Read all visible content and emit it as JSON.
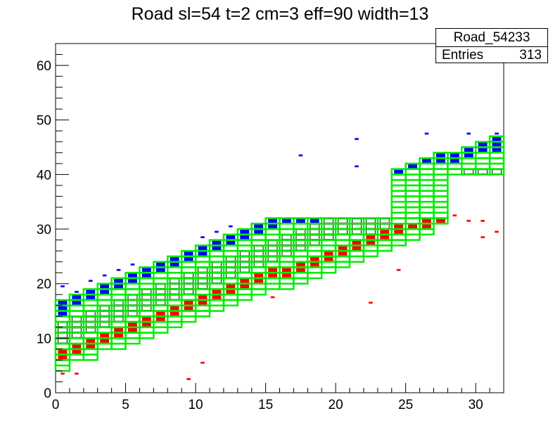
{
  "title": "Road sl=54 t=2 cm=3 eff=90 width=13",
  "stats": {
    "name": "Road_54233",
    "entries_label": "Entries",
    "entries_value": "313"
  },
  "colors": {
    "blue": "#0000ff",
    "red": "#ff0000",
    "green": "#00ee00",
    "black": "#000000"
  },
  "chart_data": {
    "type": "heatmap",
    "xlim": [
      0,
      32
    ],
    "ylim": [
      0,
      64
    ],
    "xticks": [
      "0",
      "5",
      "10",
      "15",
      "20",
      "25",
      "30"
    ],
    "yticks": [
      "0",
      "10",
      "20",
      "30",
      "40",
      "50",
      "60"
    ],
    "grid": false,
    "road_lower": [
      [
        0,
        4
      ],
      [
        1,
        6
      ],
      [
        2,
        6
      ],
      [
        3,
        8
      ],
      [
        4,
        8
      ],
      [
        5,
        9
      ],
      [
        6,
        10
      ],
      [
        7,
        11
      ],
      [
        8,
        12
      ],
      [
        9,
        13
      ],
      [
        10,
        14
      ],
      [
        11,
        15
      ],
      [
        12,
        16
      ],
      [
        13,
        17
      ],
      [
        14,
        18
      ],
      [
        15,
        19
      ],
      [
        16,
        19
      ],
      [
        17,
        20
      ],
      [
        18,
        21
      ],
      [
        19,
        22
      ],
      [
        20,
        23
      ],
      [
        21,
        24
      ],
      [
        22,
        25
      ],
      [
        23,
        26
      ],
      [
        24,
        27
      ],
      [
        25,
        28
      ],
      [
        26,
        29
      ],
      [
        27,
        31
      ],
      [
        28,
        40
      ],
      [
        29,
        40
      ],
      [
        30,
        40
      ],
      [
        31,
        40
      ]
    ],
    "road_upper": [
      [
        0,
        17
      ],
      [
        1,
        18
      ],
      [
        2,
        19
      ],
      [
        3,
        20
      ],
      [
        4,
        21
      ],
      [
        5,
        22
      ],
      [
        6,
        23
      ],
      [
        7,
        24
      ],
      [
        8,
        25
      ],
      [
        9,
        26
      ],
      [
        10,
        27
      ],
      [
        11,
        28
      ],
      [
        12,
        29
      ],
      [
        13,
        30
      ],
      [
        14,
        31
      ],
      [
        15,
        32
      ],
      [
        16,
        32
      ],
      [
        17,
        32
      ],
      [
        18,
        32
      ],
      [
        19,
        32
      ],
      [
        20,
        32
      ],
      [
        21,
        32
      ],
      [
        22,
        32
      ],
      [
        23,
        32
      ],
      [
        24,
        41
      ],
      [
        25,
        42
      ],
      [
        26,
        43
      ],
      [
        27,
        44
      ],
      [
        28,
        44
      ],
      [
        29,
        45
      ],
      [
        30,
        46
      ],
      [
        31,
        47
      ]
    ],
    "cells": {
      "blue": [
        [
          0,
          14
        ],
        [
          0,
          15
        ],
        [
          0,
          16
        ],
        [
          1,
          16
        ],
        [
          1,
          17
        ],
        [
          2,
          17
        ],
        [
          2,
          18
        ],
        [
          3,
          18
        ],
        [
          3,
          19
        ],
        [
          4,
          19
        ],
        [
          4,
          20
        ],
        [
          5,
          20
        ],
        [
          5,
          21
        ],
        [
          6,
          21
        ],
        [
          6,
          22
        ],
        [
          7,
          22
        ],
        [
          7,
          23
        ],
        [
          8,
          23
        ],
        [
          8,
          24
        ],
        [
          9,
          24
        ],
        [
          9,
          25
        ],
        [
          10,
          25
        ],
        [
          10,
          26
        ],
        [
          11,
          26
        ],
        [
          11,
          27
        ],
        [
          12,
          27
        ],
        [
          12,
          28
        ],
        [
          13,
          28
        ],
        [
          13,
          29
        ],
        [
          14,
          29
        ],
        [
          14,
          30
        ],
        [
          15,
          30
        ],
        [
          15,
          31
        ],
        [
          16,
          31
        ],
        [
          17,
          31
        ],
        [
          18,
          31
        ],
        [
          24,
          40
        ],
        [
          25,
          41
        ],
        [
          26,
          42
        ],
        [
          27,
          42
        ],
        [
          27,
          43
        ],
        [
          28,
          42
        ],
        [
          28,
          43
        ],
        [
          29,
          43
        ],
        [
          29,
          44
        ],
        [
          30,
          44
        ],
        [
          30,
          45
        ],
        [
          31,
          44
        ],
        [
          31,
          45
        ],
        [
          31,
          46
        ]
      ],
      "red": [
        [
          0,
          6
        ],
        [
          0,
          7
        ],
        [
          1,
          7
        ],
        [
          1,
          8
        ],
        [
          2,
          8
        ],
        [
          2,
          9
        ],
        [
          3,
          9
        ],
        [
          3,
          10
        ],
        [
          4,
          10
        ],
        [
          4,
          11
        ],
        [
          5,
          11
        ],
        [
          5,
          12
        ],
        [
          6,
          12
        ],
        [
          6,
          13
        ],
        [
          7,
          13
        ],
        [
          7,
          14
        ],
        [
          8,
          14
        ],
        [
          8,
          15
        ],
        [
          9,
          15
        ],
        [
          9,
          16
        ],
        [
          10,
          16
        ],
        [
          10,
          17
        ],
        [
          11,
          17
        ],
        [
          11,
          18
        ],
        [
          12,
          18
        ],
        [
          12,
          19
        ],
        [
          13,
          19
        ],
        [
          13,
          20
        ],
        [
          14,
          20
        ],
        [
          14,
          21
        ],
        [
          15,
          21
        ],
        [
          15,
          22
        ],
        [
          16,
          21
        ],
        [
          16,
          22
        ],
        [
          17,
          22
        ],
        [
          17,
          23
        ],
        [
          18,
          23
        ],
        [
          18,
          24
        ],
        [
          19,
          24
        ],
        [
          19,
          25
        ],
        [
          20,
          25
        ],
        [
          20,
          26
        ],
        [
          21,
          26
        ],
        [
          21,
          27
        ],
        [
          22,
          27
        ],
        [
          22,
          28
        ],
        [
          23,
          28
        ],
        [
          23,
          29
        ],
        [
          24,
          29
        ],
        [
          24,
          30
        ],
        [
          25,
          30
        ],
        [
          26,
          30
        ],
        [
          26,
          31
        ],
        [
          27,
          31
        ]
      ],
      "black": [
        [
          0,
          9
        ],
        [
          0,
          10
        ],
        [
          0,
          11
        ],
        [
          0,
          12
        ],
        [
          1,
          10
        ],
        [
          1,
          11
        ],
        [
          1,
          12
        ],
        [
          1,
          13
        ],
        [
          2,
          11
        ],
        [
          2,
          12
        ],
        [
          2,
          13
        ],
        [
          2,
          14
        ],
        [
          3,
          12
        ],
        [
          3,
          13
        ],
        [
          3,
          14
        ],
        [
          3,
          15
        ],
        [
          4,
          13
        ],
        [
          4,
          14
        ],
        [
          4,
          15
        ],
        [
          4,
          16
        ],
        [
          5,
          14
        ],
        [
          5,
          15
        ],
        [
          5,
          16
        ],
        [
          5,
          17
        ],
        [
          6,
          15
        ],
        [
          6,
          16
        ],
        [
          6,
          17
        ],
        [
          6,
          18
        ],
        [
          7,
          16
        ],
        [
          7,
          17
        ],
        [
          7,
          18
        ],
        [
          7,
          19
        ],
        [
          8,
          17
        ],
        [
          8,
          18
        ],
        [
          8,
          19
        ],
        [
          8,
          20
        ],
        [
          9,
          18
        ],
        [
          9,
          19
        ],
        [
          9,
          20
        ],
        [
          9,
          21
        ],
        [
          10,
          19
        ],
        [
          10,
          20
        ],
        [
          10,
          21
        ],
        [
          10,
          22
        ],
        [
          11,
          20
        ],
        [
          11,
          21
        ],
        [
          11,
          22
        ],
        [
          11,
          23
        ],
        [
          12,
          21
        ],
        [
          12,
          22
        ],
        [
          12,
          23
        ],
        [
          12,
          24
        ],
        [
          13,
          22
        ],
        [
          13,
          23
        ],
        [
          13,
          24
        ],
        [
          13,
          25
        ],
        [
          14,
          23
        ],
        [
          14,
          24
        ],
        [
          14,
          25
        ],
        [
          14,
          26
        ],
        [
          15,
          24
        ],
        [
          15,
          25
        ],
        [
          15,
          26
        ],
        [
          15,
          27
        ],
        [
          16,
          25
        ],
        [
          16,
          26
        ],
        [
          16,
          27
        ],
        [
          16,
          28
        ],
        [
          17,
          26
        ],
        [
          17,
          27
        ],
        [
          17,
          28
        ],
        [
          17,
          29
        ],
        [
          18,
          27
        ],
        [
          18,
          28
        ],
        [
          18,
          29
        ],
        [
          18,
          30
        ],
        [
          19,
          28
        ],
        [
          19,
          29
        ],
        [
          19,
          30
        ],
        [
          19,
          31
        ],
        [
          20,
          29
        ],
        [
          20,
          30
        ],
        [
          20,
          31
        ],
        [
          21,
          29
        ],
        [
          21,
          30
        ],
        [
          21,
          31
        ],
        [
          22,
          29
        ],
        [
          22,
          30
        ],
        [
          22,
          31
        ],
        [
          23,
          30
        ],
        [
          23,
          31
        ],
        [
          29,
          40
        ],
        [
          30,
          40
        ],
        [
          31,
          40
        ]
      ],
      "stray_blue": [
        [
          0,
          19
        ],
        [
          1,
          18
        ],
        [
          2,
          20
        ],
        [
          3,
          21
        ],
        [
          4,
          22
        ],
        [
          5,
          23
        ],
        [
          10,
          28
        ],
        [
          11,
          29
        ],
        [
          12,
          30
        ],
        [
          17,
          43
        ],
        [
          21,
          46
        ],
        [
          21,
          41
        ],
        [
          26,
          47
        ],
        [
          29,
          47
        ],
        [
          31,
          47
        ]
      ],
      "stray_red": [
        [
          0,
          3
        ],
        [
          1,
          3
        ],
        [
          9,
          2
        ],
        [
          10,
          5
        ],
        [
          15,
          17
        ],
        [
          22,
          16
        ],
        [
          24,
          22
        ],
        [
          28,
          32
        ],
        [
          29,
          31
        ],
        [
          30,
          28
        ],
        [
          30,
          31
        ],
        [
          31,
          29
        ]
      ]
    }
  }
}
